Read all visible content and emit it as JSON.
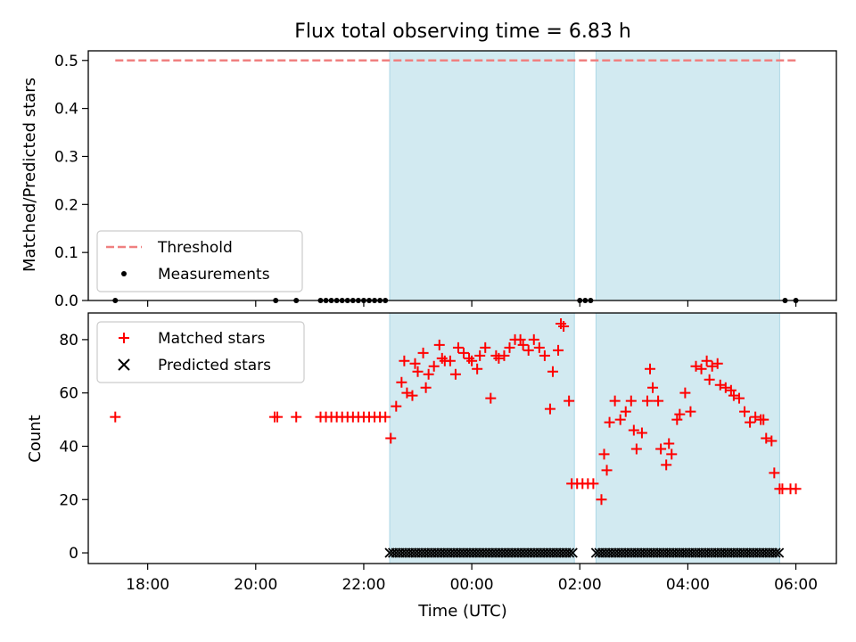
{
  "chart_data": [
    {
      "type": "line",
      "title": "Flux total observing time = 6.83 h",
      "xlabel": "",
      "ylabel": "Matched/Predicted stars",
      "ylim": [
        0,
        0.52
      ],
      "yticks": [
        "0.0",
        "0.1",
        "0.2",
        "0.3",
        "0.4",
        "0.5"
      ],
      "ytick_values": [
        0,
        0.1,
        0.2,
        0.3,
        0.4,
        0.5
      ],
      "xlim_hours": [
        16.9,
        30.75
      ],
      "xtick_values": [
        18,
        20,
        22,
        24,
        26,
        28,
        30
      ],
      "shaded_spans_hours": [
        [
          22.48,
          25.9
        ],
        [
          26.3,
          29.7
        ]
      ],
      "shade_color": "#add8e6",
      "legend_position": "lower-left",
      "legend": [
        {
          "label": "Threshold",
          "style": "dashed-line",
          "color": "#f08080"
        },
        {
          "label": "Measurements",
          "style": "dot",
          "color": "#000000"
        }
      ],
      "series": [
        {
          "name": "Threshold",
          "color": "#f08080",
          "x": [
            17.4,
            30.0
          ],
          "y": [
            0.5,
            0.5
          ]
        },
        {
          "name": "Measurements",
          "color": "#000000",
          "x": [
            17.4,
            20.37,
            20.75,
            21.2,
            21.3,
            21.4,
            21.5,
            21.6,
            21.7,
            21.8,
            21.9,
            22.0,
            22.1,
            22.2,
            22.3,
            22.4,
            26.0,
            26.1,
            26.2,
            29.8,
            30.0
          ],
          "y": [
            0,
            0,
            0,
            0,
            0,
            0,
            0,
            0,
            0,
            0,
            0,
            0,
            0,
            0,
            0,
            0,
            0,
            0,
            0,
            0,
            0
          ]
        }
      ]
    },
    {
      "type": "scatter",
      "title": "",
      "xlabel": "Time (UTC)",
      "ylabel": "Count",
      "ylim": [
        -4,
        90
      ],
      "yticks": [
        "0",
        "20",
        "40",
        "60",
        "80"
      ],
      "ytick_values": [
        0,
        20,
        40,
        60,
        80
      ],
      "xlim_hours": [
        16.9,
        30.75
      ],
      "xtick_values": [
        18,
        20,
        22,
        24,
        26,
        28,
        30
      ],
      "xticks": [
        "18:00",
        "20:00",
        "22:00",
        "00:00",
        "02:00",
        "04:00",
        "06:00"
      ],
      "shaded_spans_hours": [
        [
          22.48,
          25.9
        ],
        [
          26.3,
          29.7
        ]
      ],
      "shade_color": "#add8e6",
      "legend_position": "upper-left",
      "legend": [
        {
          "label": "Matched stars",
          "style": "plus",
          "color": "#ff0000"
        },
        {
          "label": "Predicted stars",
          "style": "x",
          "color": "#000000"
        }
      ],
      "series": [
        {
          "name": "Matched stars",
          "color": "#ff0000",
          "x": [
            17.4,
            20.35,
            20.4,
            20.75,
            21.2,
            21.3,
            21.4,
            21.5,
            21.6,
            21.7,
            21.8,
            21.9,
            22.0,
            22.1,
            22.2,
            22.3,
            22.4,
            22.5,
            22.6,
            22.7,
            22.75,
            22.8,
            22.9,
            22.95,
            23.0,
            23.1,
            23.15,
            23.2,
            23.3,
            23.4,
            23.45,
            23.5,
            23.6,
            23.7,
            23.75,
            23.85,
            23.95,
            24.0,
            24.1,
            24.15,
            24.25,
            24.35,
            24.45,
            24.5,
            24.6,
            24.7,
            24.8,
            24.9,
            24.95,
            25.05,
            25.15,
            25.25,
            25.35,
            25.45,
            25.5,
            25.6,
            25.65,
            25.7,
            25.8,
            25.85,
            25.95,
            26.05,
            26.15,
            26.25,
            26.4,
            26.45,
            26.5,
            26.55,
            26.65,
            26.75,
            26.85,
            26.95,
            27.0,
            27.05,
            27.15,
            27.25,
            27.3,
            27.35,
            27.45,
            27.5,
            27.6,
            27.65,
            27.7,
            27.8,
            27.85,
            27.95,
            28.05,
            28.15,
            28.25,
            28.35,
            28.4,
            28.45,
            28.55,
            28.6,
            28.7,
            28.8,
            28.85,
            28.95,
            29.05,
            29.15,
            29.25,
            29.35,
            29.4,
            29.45,
            29.55,
            29.6,
            29.7,
            29.75,
            29.9,
            30.0
          ],
          "y": [
            51,
            51,
            51,
            51,
            51,
            51,
            51,
            51,
            51,
            51,
            51,
            51,
            51,
            51,
            51,
            51,
            51,
            43,
            55,
            64,
            72,
            60,
            59,
            71,
            68,
            75,
            62,
            67,
            70,
            78,
            73,
            72,
            72,
            67,
            77,
            75,
            73,
            72,
            69,
            74,
            77,
            58,
            74,
            73,
            74,
            77,
            80,
            80,
            78,
            76,
            80,
            77,
            74,
            54,
            68,
            76,
            86,
            85,
            57,
            26,
            26,
            26,
            26,
            26,
            20,
            37,
            31,
            49,
            57,
            50,
            53,
            57,
            46,
            39,
            45,
            57,
            69,
            62,
            57,
            39,
            33,
            41,
            37,
            50,
            52,
            60,
            53,
            70,
            69,
            72,
            65,
            70,
            71,
            63,
            62,
            61,
            59,
            58,
            53,
            49,
            51,
            50,
            50,
            43,
            42,
            30,
            24,
            24,
            24,
            24
          ]
        },
        {
          "name": "Predicted stars",
          "color": "#000000",
          "x": [
            22.48,
            25.9,
            26.3,
            29.7
          ],
          "y": [
            0,
            0,
            0,
            0
          ]
        }
      ]
    }
  ]
}
